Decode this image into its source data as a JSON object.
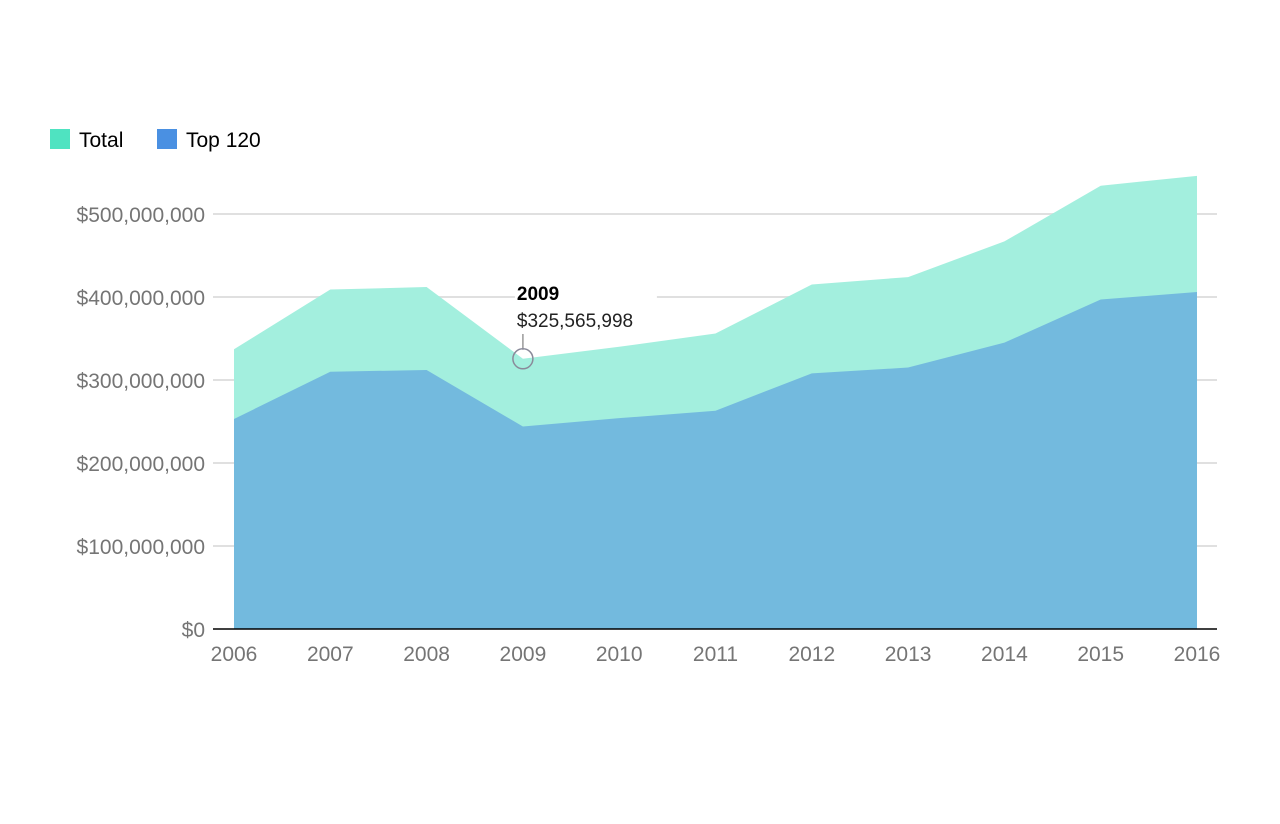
{
  "chart_data": {
    "type": "area",
    "title": "",
    "xlabel": "",
    "ylabel": "",
    "categories": [
      "2006",
      "2007",
      "2008",
      "2009",
      "2010",
      "2011",
      "2012",
      "2013",
      "2014",
      "2015",
      "2016"
    ],
    "series": [
      {
        "name": "Total",
        "color": "#4FE3C1",
        "fill": "#A1EFDD",
        "values": [
          337000000,
          409000000,
          412000000,
          325565998,
          340000000,
          356000000,
          415000000,
          424000000,
          467000000,
          534000000,
          546000000
        ]
      },
      {
        "name": "Top 120",
        "color": "#4A90E2",
        "fill": "#72B9DD",
        "values": [
          253000000,
          310000000,
          312000000,
          244000000,
          254000000,
          263000000,
          308000000,
          315000000,
          345000000,
          397000000,
          406000000
        ]
      }
    ],
    "ylim": [
      0,
      500000000
    ],
    "yticks": [
      "$0",
      "$100,000,000",
      "$200,000,000",
      "$300,000,000",
      "$400,000,000",
      "$500,000,000"
    ],
    "ytick_values": [
      0,
      100000000,
      200000000,
      300000000,
      400000000,
      500000000
    ],
    "grid": true,
    "legend_position": "top-left",
    "annotation": {
      "series": "Total",
      "category": "2009",
      "title": "2009",
      "value_label": "$325,565,998"
    }
  }
}
